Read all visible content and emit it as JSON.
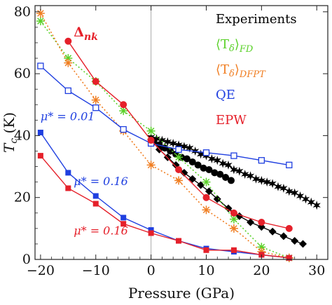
{
  "chart_data": {
    "type": "line",
    "xlabel": "Pressure (GPa)",
    "ylabel": "T_c (K)",
    "xlim": [
      -21,
      32
    ],
    "ylim": [
      0,
      82
    ],
    "xticks": [
      -20,
      -10,
      0,
      10,
      20,
      30
    ],
    "xtick_labels": [
      "−20",
      "−10",
      "0",
      "10",
      "20",
      "30"
    ],
    "yticks": [
      0,
      20,
      40,
      60,
      80
    ],
    "ytick_labels": [
      "0",
      "20",
      "40",
      "60",
      "80"
    ],
    "grid": false,
    "vline_x": 0,
    "legend": {
      "placement": "top-right",
      "entries": [
        {
          "text": "Experiments",
          "color": "#000000",
          "style": "plain"
        },
        {
          "text": "⟨T",
          "sub": "δ",
          "tail": "⟩",
          "tail_sub": "FD",
          "color": "#5bd12a",
          "style": "avg"
        },
        {
          "text": "⟨T",
          "sub": "δ",
          "tail": "⟩",
          "tail_sub": "DFPT",
          "color": "#f07e22",
          "style": "avg"
        },
        {
          "text": "QE",
          "color": "#1f3fe0",
          "style": "plain"
        },
        {
          "text": "EPW",
          "color": "#e5202a",
          "style": "plain"
        }
      ]
    },
    "annotations": [
      {
        "text": "Δ",
        "sub": "nk",
        "color": "#e5202a",
        "x": -14,
        "y": 72
      },
      {
        "text": "μ* = 0.01",
        "color": "#1f3fe0",
        "x": -20,
        "y": 45
      },
      {
        "text": "μ* = 0.16",
        "color": "#1f3fe0",
        "x": -14,
        "y": 24
      },
      {
        "text": "μ* = 0.16",
        "color": "#e5202a",
        "x": -14,
        "y": 8
      }
    ],
    "series": [
      {
        "key": "exp_star",
        "color": "#000000",
        "line": "solid",
        "marker": "star6",
        "x": [
          0,
          1,
          2,
          3,
          4,
          5,
          6,
          7,
          8,
          9,
          10,
          11,
          12,
          13,
          14,
          15,
          16,
          17,
          18,
          19,
          20,
          21,
          22,
          23,
          24,
          25,
          26,
          27,
          28,
          29,
          30
        ],
        "y": [
          39.5,
          39,
          38.5,
          38,
          37.5,
          37,
          36.5,
          36,
          35,
          34,
          33.5,
          32.5,
          32,
          31,
          30.5,
          29,
          28.5,
          27.5,
          27,
          26,
          25.5,
          25,
          24.5,
          23.5,
          23,
          22,
          21.5,
          20.5,
          19.5,
          18.5,
          17.5
        ]
      },
      {
        "key": "exp_circle",
        "color": "#000000",
        "line": "solid",
        "marker": "circle",
        "x": [
          0.5,
          1.5,
          2.5,
          3.5,
          4.5,
          5.5,
          6.5,
          7.5,
          8.5,
          9.5,
          10.5,
          11.5,
          12.5,
          13.5,
          14.5
        ],
        "y": [
          38,
          37,
          36,
          35,
          34,
          33,
          32.5,
          31.5,
          30.5,
          29.5,
          29,
          28,
          27.5,
          26.5,
          25.5
        ]
      },
      {
        "key": "exp_diamond",
        "color": "#000000",
        "line": "solid",
        "marker": "diamond",
        "x": [
          0.3,
          1.5,
          3,
          4.5,
          6,
          7.5,
          9,
          10.5,
          12,
          14,
          16,
          18,
          20,
          22,
          24,
          26,
          27.5
        ],
        "y": [
          38,
          35.5,
          33,
          30.5,
          28,
          26,
          24,
          22,
          19.5,
          16.5,
          14,
          12,
          10.5,
          9,
          7.5,
          6,
          5
        ]
      },
      {
        "key": "fd",
        "color": "#5bd12a",
        "line": "dotted",
        "marker": "asterisk",
        "x": [
          -20,
          -15,
          -10,
          -5,
          0,
          5,
          10,
          15,
          20,
          25
        ],
        "y": [
          77,
          65,
          57.5,
          48,
          41.5,
          33,
          25,
          13,
          4,
          0.5
        ]
      },
      {
        "key": "dfpt",
        "color": "#f07e22",
        "line": "dotted",
        "marker": "asterisk",
        "x": [
          -20,
          -15,
          -10,
          -5,
          0,
          5,
          10,
          15,
          20,
          25
        ],
        "y": [
          79.5,
          63.5,
          51.5,
          41.5,
          30.5,
          25.5,
          16,
          10,
          2.5,
          0.5
        ]
      },
      {
        "key": "qe_001",
        "color": "#1f3fe0",
        "line": "solid",
        "marker": "square-open",
        "x": [
          -20,
          -15,
          -10,
          -5,
          0,
          5,
          10,
          15,
          20,
          25
        ],
        "y": [
          62.5,
          54.5,
          49,
          42,
          37.5,
          35.5,
          34.5,
          33.5,
          32,
          30.5
        ]
      },
      {
        "key": "epw_001",
        "color": "#e5202a",
        "line": "solid",
        "marker": "circle",
        "x": [
          -15,
          -10,
          -5,
          0,
          5,
          10,
          15,
          20,
          25
        ],
        "y": [
          70.5,
          57.5,
          50,
          38.5,
          29,
          20,
          15,
          12,
          10
        ]
      },
      {
        "key": "qe_016",
        "color": "#1f3fe0",
        "line": "solid",
        "marker": "square",
        "x": [
          -20,
          -15,
          -10,
          -5,
          0,
          5,
          10,
          15,
          20,
          25
        ],
        "y": [
          41,
          28,
          20.5,
          13.5,
          9.5,
          6,
          3.5,
          2.5,
          1.5,
          0.5
        ]
      },
      {
        "key": "epw_016",
        "color": "#e5202a",
        "line": "solid",
        "marker": "square",
        "x": [
          -20,
          -15,
          -10,
          -5,
          0,
          5,
          10,
          15,
          20,
          25
        ],
        "y": [
          33.5,
          23,
          18,
          11.5,
          8.5,
          6,
          3,
          3,
          1.5,
          0.5
        ]
      }
    ]
  }
}
